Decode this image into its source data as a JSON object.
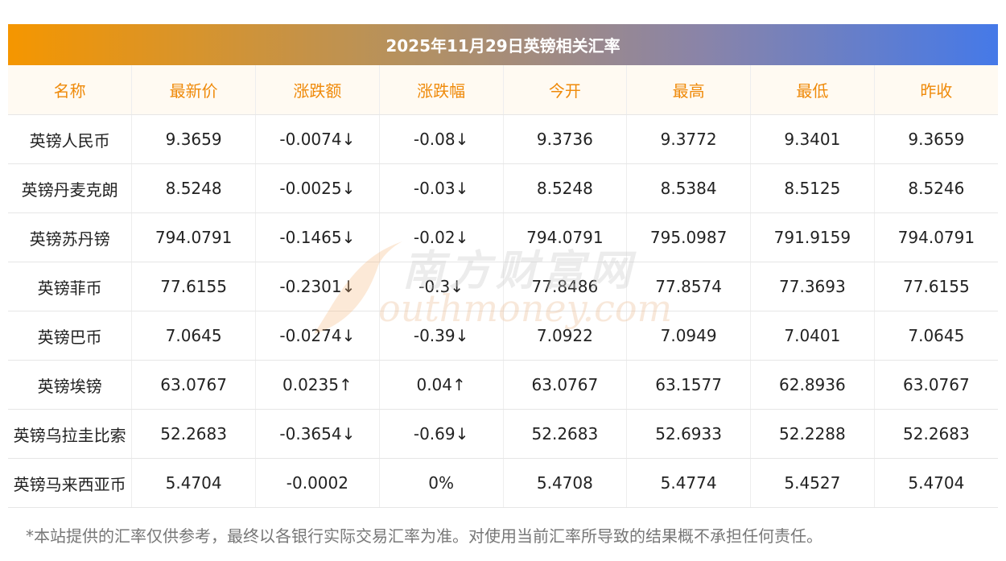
{
  "title": "2025年11月29日英镑相关汇率",
  "columns": [
    "名称",
    "最新价",
    "涨跌额",
    "涨跌幅",
    "今开",
    "最高",
    "最低",
    "昨收"
  ],
  "rows": [
    {
      "name": "英镑人民币",
      "latest": "9.3659",
      "change": "-0.0074↓",
      "pct": "-0.08↓",
      "open": "9.3736",
      "high": "9.3772",
      "low": "9.3401",
      "prev": "9.3659",
      "trend": "down"
    },
    {
      "name": "英镑丹麦克朗",
      "latest": "8.5248",
      "change": "-0.0025↓",
      "pct": "-0.03↓",
      "open": "8.5248",
      "high": "8.5384",
      "low": "8.5125",
      "prev": "8.5246",
      "trend": "down"
    },
    {
      "name": "英镑苏丹镑",
      "latest": "794.0791",
      "change": "-0.1465↓",
      "pct": "-0.02↓",
      "open": "794.0791",
      "high": "795.0987",
      "low": "791.9159",
      "prev": "794.0791",
      "trend": "down"
    },
    {
      "name": "英镑菲币",
      "latest": "77.6155",
      "change": "-0.2301↓",
      "pct": "-0.3↓",
      "open": "77.8486",
      "high": "77.8574",
      "low": "77.3693",
      "prev": "77.6155",
      "trend": "down"
    },
    {
      "name": "英镑巴币",
      "latest": "7.0645",
      "change": "-0.0274↓",
      "pct": "-0.39↓",
      "open": "7.0922",
      "high": "7.0949",
      "low": "7.0401",
      "prev": "7.0645",
      "trend": "down"
    },
    {
      "name": "英镑埃镑",
      "latest": "63.0767",
      "change": "0.0235↑",
      "pct": "0.04↑",
      "open": "63.0767",
      "high": "63.1577",
      "low": "62.8936",
      "prev": "63.0767",
      "trend": "up"
    },
    {
      "name": "英镑乌拉圭比索",
      "latest": "52.2683",
      "change": "-0.3654↓",
      "pct": "-0.69↓",
      "open": "52.2683",
      "high": "52.6933",
      "low": "52.2288",
      "prev": "52.2683",
      "trend": "down"
    },
    {
      "name": "英镑马来西亚币",
      "latest": "5.4704",
      "change": "-0.0002",
      "pct": "0%",
      "open": "5.4708",
      "high": "5.4774",
      "low": "5.4527",
      "prev": "5.4704",
      "trend": "flat"
    }
  ],
  "footer_note": "*本站提供的汇率仅供参考，最终以各银行实际交易汇率为准。对使用当前汇率所导致的结果概不承担任何责任。",
  "watermark": {
    "cn": "南方财富网",
    "en": "outhmoney.com"
  },
  "colors": {
    "up": "#e02020",
    "down": "#1e8a1e",
    "header_text": "#ef8a0a",
    "gradient_start": "#f59600",
    "gradient_end": "#4579e8"
  }
}
